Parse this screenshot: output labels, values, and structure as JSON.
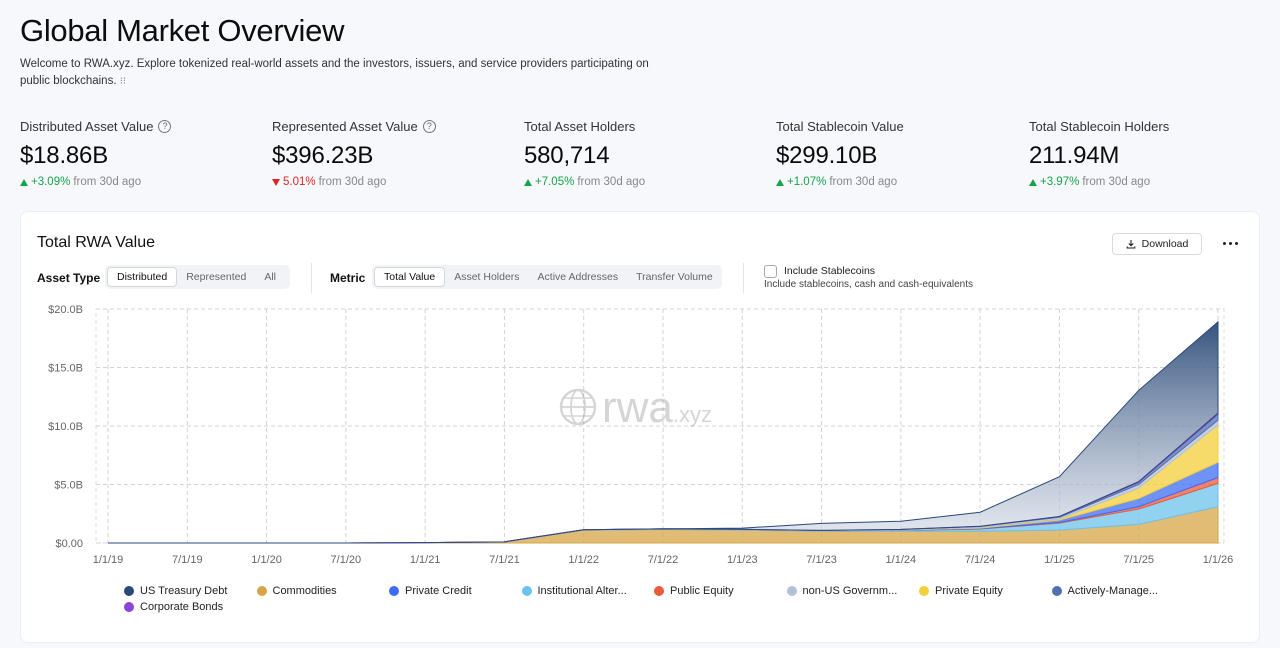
{
  "header": {
    "title": "Global Market Overview",
    "intro": "Welcome to RWA.xyz. Explore tokenized real-world assets and the investors, issuers, and service providers participating on public blockchains.",
    "intro_suffix": "⁝⁝"
  },
  "stats": [
    {
      "label": "Distributed Asset Value",
      "value": "$18.86B",
      "change": "+3.09%",
      "direction": "up",
      "period": "from 30d ago",
      "help": true
    },
    {
      "label": "Represented Asset Value",
      "value": "$396.23B",
      "change": "5.01%",
      "direction": "down",
      "period": "from 30d ago",
      "help": true
    },
    {
      "label": "Total Asset Holders",
      "value": "580,714",
      "change": "+7.05%",
      "direction": "up",
      "period": "from 30d ago",
      "help": false
    },
    {
      "label": "Total Stablecoin Value",
      "value": "$299.10B",
      "change": "+1.07%",
      "direction": "up",
      "period": "from 30d ago",
      "help": false
    },
    {
      "label": "Total Stablecoin Holders",
      "value": "211.94M",
      "change": "+3.97%",
      "direction": "up",
      "period": "from 30d ago",
      "help": false
    }
  ],
  "card": {
    "title": "Total RWA Value",
    "download_label": "Download",
    "asset_type_label": "Asset Type",
    "asset_types": [
      "Distributed",
      "Represented",
      "All"
    ],
    "asset_type_active": 0,
    "metric_label": "Metric",
    "metrics": [
      "Total Value",
      "Asset Holders",
      "Active Addresses",
      "Transfer Volume"
    ],
    "metric_active": 0,
    "stablecoin_label": "Include Stablecoins",
    "stablecoin_sub": "Include stablecoins, cash and cash-equivalents",
    "stablecoin_checked": false,
    "watermark": "rwa",
    "watermark_suffix": ".xyz"
  },
  "colors": {
    "us_treasury": "#2b4a78",
    "commodities": "#d6a646",
    "private_credit": "#3e6df5",
    "institutional": "#6cc3ec",
    "public_equity": "#ec5a3c",
    "non_us_gov": "#b4c0d6",
    "private_equity": "#f3cf3a",
    "actively_managed": "#4d72b0",
    "corporate_bonds": "#8b46d6"
  },
  "chart_data": {
    "type": "area",
    "stacked": true,
    "x": [
      "1/1/19",
      "7/1/19",
      "1/1/20",
      "7/1/20",
      "1/1/21",
      "7/1/21",
      "1/1/22",
      "7/1/22",
      "1/1/23",
      "7/1/23",
      "1/1/24",
      "7/1/24",
      "1/1/25",
      "7/1/25",
      "1/1/26"
    ],
    "xticks": [
      "1/1/19",
      "7/1/19",
      "1/1/20",
      "7/1/20",
      "1/1/21",
      "7/1/21",
      "1/1/22",
      "7/1/22",
      "1/1/23",
      "7/1/23",
      "1/1/24",
      "7/1/24",
      "1/1/25",
      "7/1/25",
      "1/1/26"
    ],
    "yticks": [
      "$0.00",
      "$5.0B",
      "$10.0B",
      "$15.0B",
      "$20.0B"
    ],
    "ylim": [
      0,
      20
    ],
    "yunit": "B USD",
    "grid": true,
    "legend_position": "bottom",
    "series": [
      {
        "name": "Commodities",
        "color": "#d6a646",
        "values": [
          0,
          0,
          0,
          0,
          0.02,
          0.08,
          1.1,
          1.15,
          1.1,
          1.0,
          1.0,
          1.0,
          1.1,
          1.6,
          3.1
        ]
      },
      {
        "name": "Institutional Alter...",
        "color": "#6cc3ec",
        "values": [
          0,
          0,
          0,
          0,
          0.01,
          0.02,
          0.03,
          0.05,
          0.05,
          0.05,
          0.08,
          0.2,
          0.6,
          1.3,
          2.0
        ]
      },
      {
        "name": "Public Equity",
        "color": "#ec5a3c",
        "values": [
          0,
          0,
          0,
          0,
          0,
          0,
          0,
          0,
          0,
          0,
          0.01,
          0.02,
          0.05,
          0.2,
          0.5
        ]
      },
      {
        "name": "Private Credit",
        "color": "#3e6df5",
        "values": [
          0,
          0,
          0,
          0,
          0,
          0,
          0,
          0,
          0,
          0,
          0.02,
          0.05,
          0.2,
          0.7,
          1.3
        ]
      },
      {
        "name": "Private Equity",
        "color": "#f3cf3a",
        "values": [
          0,
          0,
          0,
          0,
          0,
          0,
          0,
          0,
          0,
          0,
          0,
          0.05,
          0.1,
          0.9,
          3.2
        ]
      },
      {
        "name": "non-US Governm...",
        "color": "#b4c0d6",
        "values": [
          0,
          0,
          0,
          0,
          0,
          0,
          0,
          0.01,
          0.02,
          0.03,
          0.05,
          0.1,
          0.15,
          0.3,
          0.4
        ]
      },
      {
        "name": "Actively-Manage...",
        "color": "#4d72b0",
        "values": [
          0,
          0,
          0,
          0,
          0,
          0,
          0,
          0,
          0,
          0,
          0,
          0,
          0.05,
          0.2,
          0.5
        ]
      },
      {
        "name": "Corporate Bonds",
        "color": "#8b46d6",
        "values": [
          0,
          0,
          0,
          0,
          0,
          0,
          0,
          0,
          0,
          0,
          0,
          0.01,
          0.02,
          0.05,
          0.1
        ]
      },
      {
        "name": "US Treasury Debt",
        "color": "#2b4a78",
        "values": [
          0,
          0,
          0,
          0,
          0,
          0,
          0,
          0,
          0.1,
          0.6,
          0.7,
          1.2,
          3.4,
          7.8,
          7.8
        ]
      }
    ],
    "total": [
      0,
      0,
      0,
      0,
      0.03,
      0.1,
      1.13,
      1.21,
      1.27,
      1.68,
      1.86,
      2.63,
      5.67,
      13.05,
      18.9
    ]
  },
  "legend": [
    {
      "label": "US Treasury Debt",
      "color": "#2b4a78"
    },
    {
      "label": "Commodities",
      "color": "#d6a646"
    },
    {
      "label": "Private Credit",
      "color": "#3e6df5"
    },
    {
      "label": "Institutional Alter...",
      "color": "#6cc3ec"
    },
    {
      "label": "Public Equity",
      "color": "#ec5a3c"
    },
    {
      "label": "non-US Governm...",
      "color": "#b4c0d6"
    },
    {
      "label": "Private Equity",
      "color": "#f3cf3a"
    },
    {
      "label": "Actively-Manage...",
      "color": "#4d72b0"
    },
    {
      "label": "Corporate Bonds",
      "color": "#8b46d6"
    }
  ]
}
